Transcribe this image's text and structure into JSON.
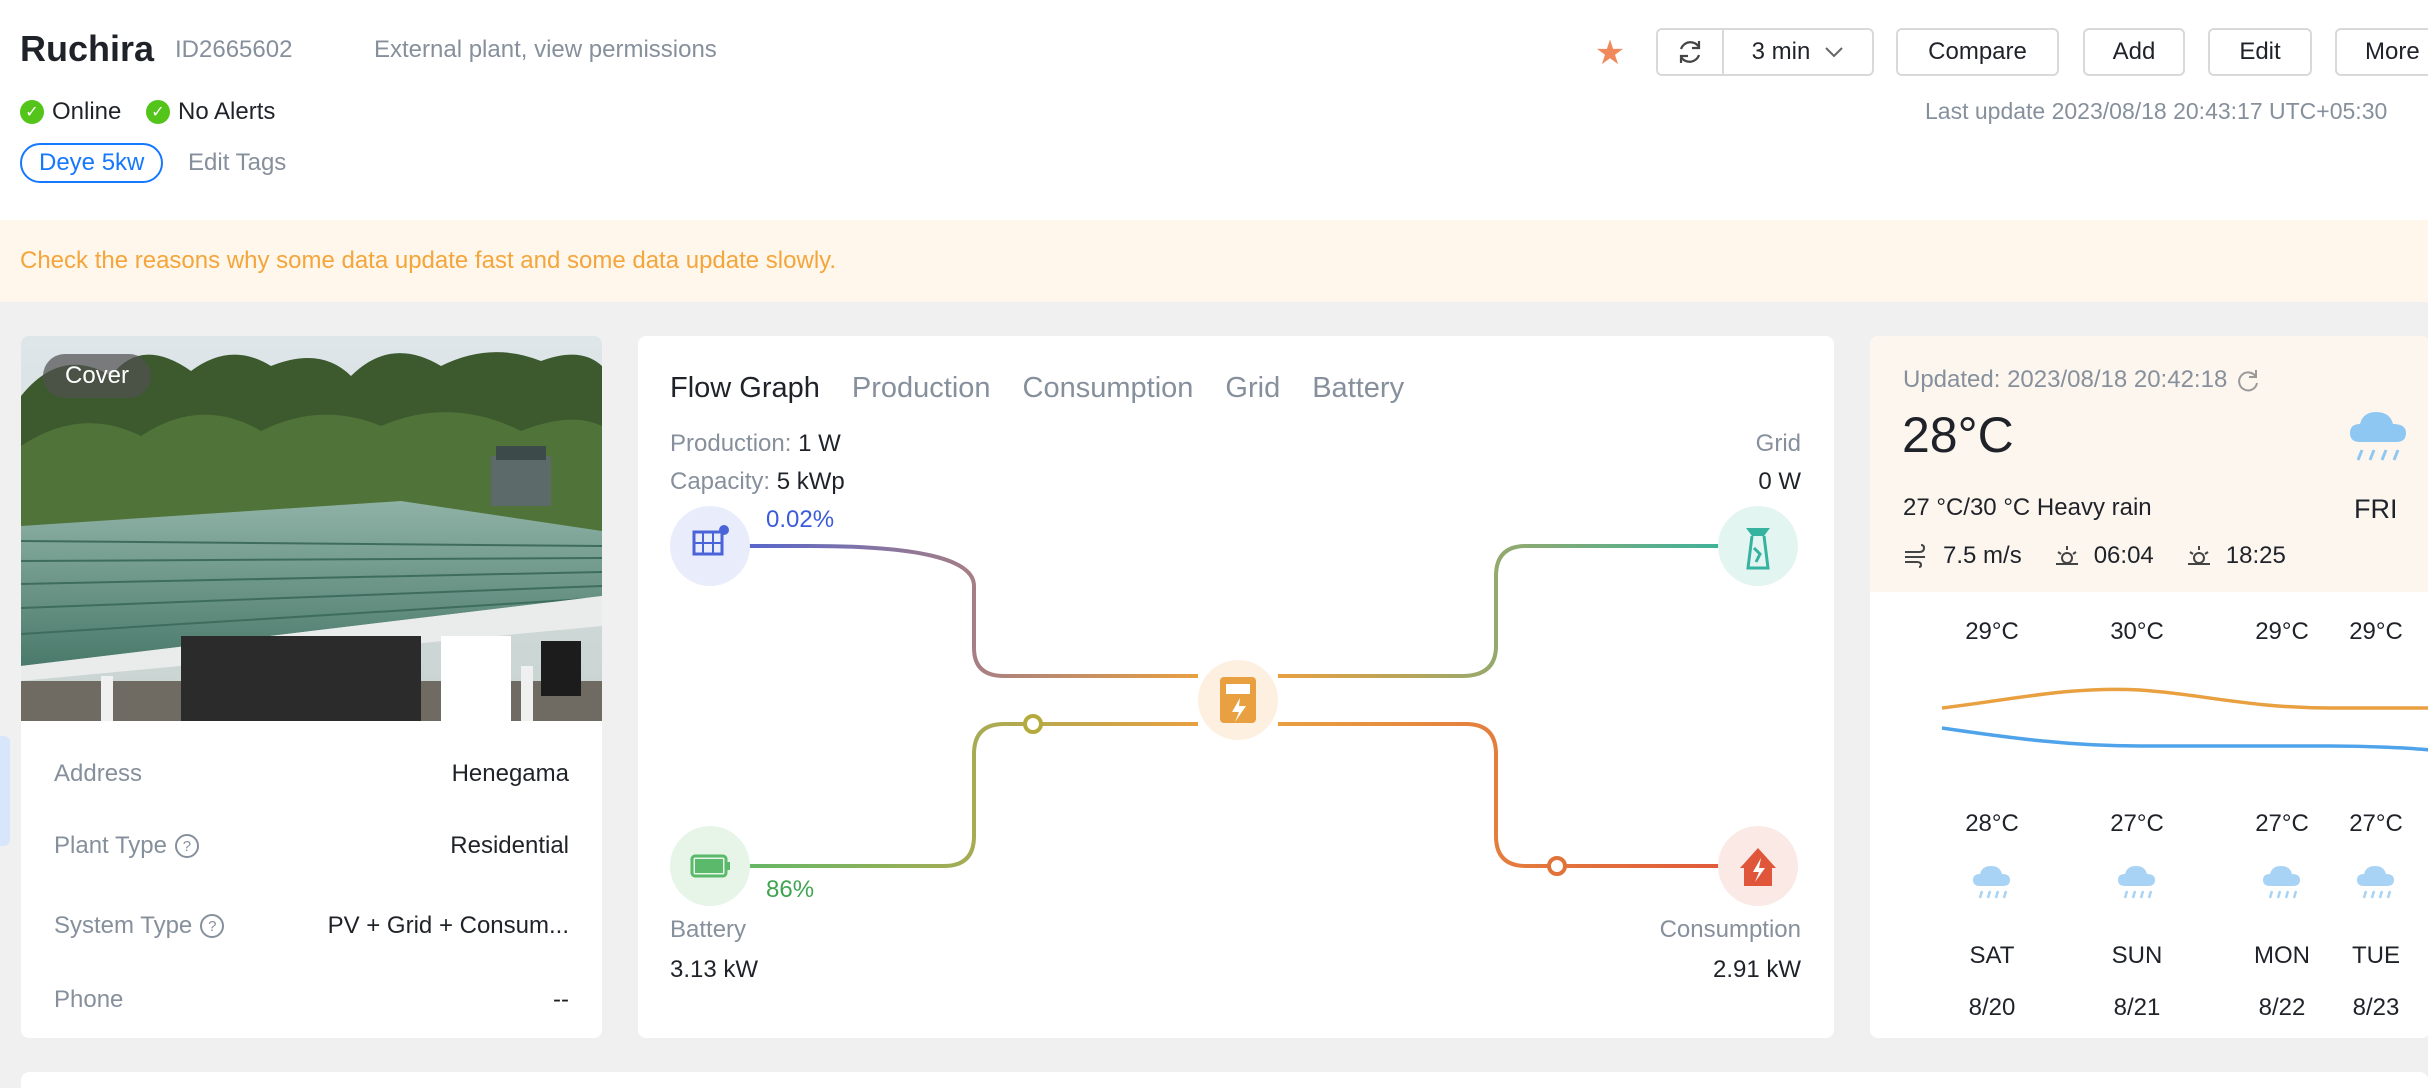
{
  "header": {
    "plant_name": "Ruchira",
    "plant_id": "ID2665602",
    "permission": "External plant, view permissions",
    "status_online": "Online",
    "status_alerts": "No Alerts",
    "tag": "Deye 5kw",
    "edit_tags": "Edit Tags",
    "refresh_interval": "3 min",
    "buttons": {
      "compare": "Compare",
      "add": "Add",
      "edit": "Edit",
      "more": "More"
    },
    "last_update": "Last update 2023/08/18 20:43:17 UTC+05:30"
  },
  "notice": "Check the reasons why some data update fast and some data update slowly.",
  "plant_card": {
    "cover_label": "Cover",
    "rows": [
      {
        "label": "Address",
        "value": "Henegama"
      },
      {
        "label": "Plant Type",
        "value": "Residential"
      },
      {
        "label": "System Type",
        "value": "PV + Grid + Consum..."
      },
      {
        "label": "Phone",
        "value": "--"
      }
    ]
  },
  "flow": {
    "tabs": [
      "Flow Graph",
      "Production",
      "Consumption",
      "Grid",
      "Battery"
    ],
    "production_label": "Production:",
    "production_value": "1 W",
    "capacity_label": "Capacity:",
    "capacity_value": "5 kWp",
    "solar_pct": "0.02%",
    "grid_label": "Grid",
    "grid_value": "0 W",
    "battery_pct": "86%",
    "battery_label": "Battery",
    "battery_value": "3.13 kW",
    "consumption_label": "Consumption",
    "consumption_value": "2.91 kW"
  },
  "weather": {
    "updated_label": "Updated:",
    "updated_time": "2023/08/18 20:42:18",
    "current_temp": "28°C",
    "description": "27 °C/30 °C Heavy rain",
    "wind": "7.5 m/s",
    "sunrise": "06:04",
    "sunset": "18:25",
    "today": "FRI",
    "forecast": [
      {
        "high": "29°C",
        "low": "28°C",
        "day": "SAT",
        "date": "8/20"
      },
      {
        "high": "30°C",
        "low": "27°C",
        "day": "SUN",
        "date": "8/21"
      },
      {
        "high": "29°C",
        "low": "27°C",
        "day": "MON",
        "date": "8/22"
      },
      {
        "high": "29°C",
        "low": "27°C",
        "day": "TUE",
        "date": "8/23"
      }
    ],
    "colors": {
      "high_line": "#e8a040",
      "low_line": "#4fa3ea"
    }
  }
}
